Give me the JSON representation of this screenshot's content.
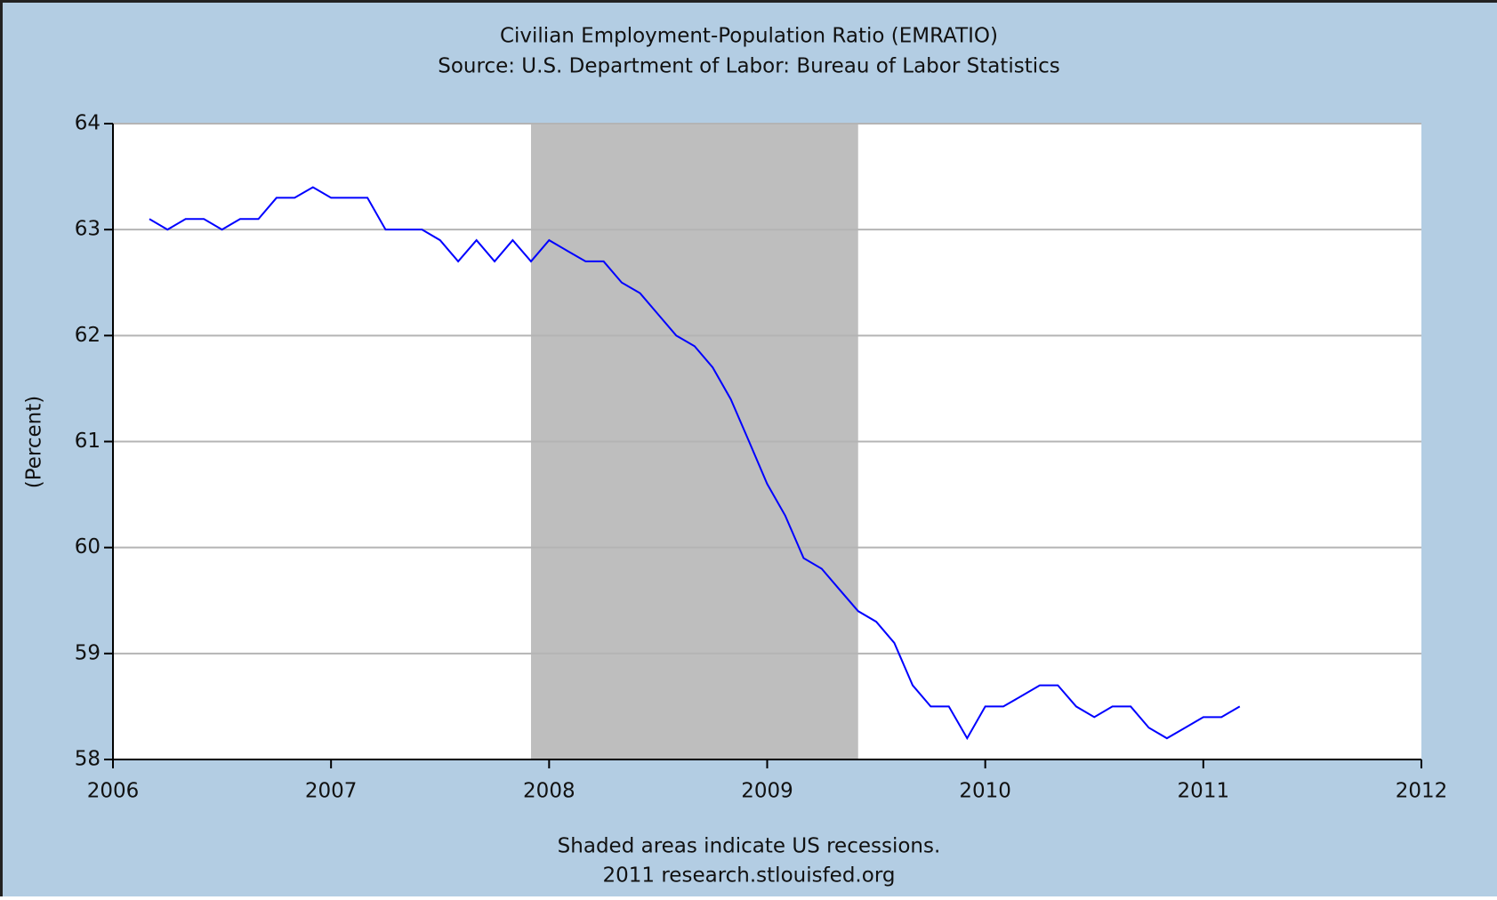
{
  "chart_data": {
    "type": "line",
    "title": "Civilian Employment-Population Ratio (EMRATIO)",
    "subtitle": "Source: U.S. Department of Labor: Bureau of Labor Statistics",
    "ylabel": "(Percent)",
    "notes": [
      "Shaded areas indicate US recessions.",
      "2011 research.stlouisfed.org"
    ],
    "recessions": [
      [
        2007.917,
        2009.417
      ]
    ],
    "recession_color": "#bebebe",
    "x": [
      2006.167,
      2006.25,
      2006.333,
      2006.417,
      2006.5,
      2006.583,
      2006.667,
      2006.75,
      2006.833,
      2006.917,
      2007.0,
      2007.083,
      2007.167,
      2007.25,
      2007.333,
      2007.417,
      2007.5,
      2007.583,
      2007.667,
      2007.75,
      2007.833,
      2007.917,
      2008.0,
      2008.083,
      2008.167,
      2008.25,
      2008.333,
      2008.417,
      2008.5,
      2008.583,
      2008.667,
      2008.75,
      2008.833,
      2008.917,
      2009.0,
      2009.083,
      2009.167,
      2009.25,
      2009.333,
      2009.417,
      2009.5,
      2009.583,
      2009.667,
      2009.75,
      2009.833,
      2009.917,
      2010.0,
      2010.083,
      2010.167,
      2010.25,
      2010.333,
      2010.417,
      2010.5,
      2010.583,
      2010.667,
      2010.75,
      2010.833,
      2010.917,
      2011.0,
      2011.083,
      2011.167
    ],
    "series": [
      {
        "name": "EMRATIO",
        "color": "#0000ff",
        "values": [
          63.1,
          63.0,
          63.1,
          63.1,
          63.0,
          63.1,
          63.1,
          63.3,
          63.3,
          63.4,
          63.3,
          63.3,
          63.3,
          63.0,
          63.0,
          63.0,
          62.9,
          62.7,
          62.9,
          62.7,
          62.9,
          62.7,
          62.9,
          62.8,
          62.7,
          62.7,
          62.5,
          62.4,
          62.2,
          62.0,
          61.9,
          61.7,
          61.4,
          61.0,
          60.6,
          60.3,
          59.9,
          59.8,
          59.6,
          59.4,
          59.3,
          59.1,
          58.7,
          58.5,
          58.5,
          58.2,
          58.5,
          58.5,
          58.6,
          58.7,
          58.7,
          58.5,
          58.4,
          58.5,
          58.5,
          58.3,
          58.2,
          58.3,
          58.4,
          58.4,
          58.5
        ]
      }
    ],
    "xlim": [
      2006,
      2012
    ],
    "xticks": [
      2006,
      2007,
      2008,
      2009,
      2010,
      2011,
      2012
    ],
    "ylim": [
      58,
      64
    ],
    "yticks": [
      58,
      59,
      60,
      61,
      62,
      63,
      64
    ],
    "grid": true
  }
}
